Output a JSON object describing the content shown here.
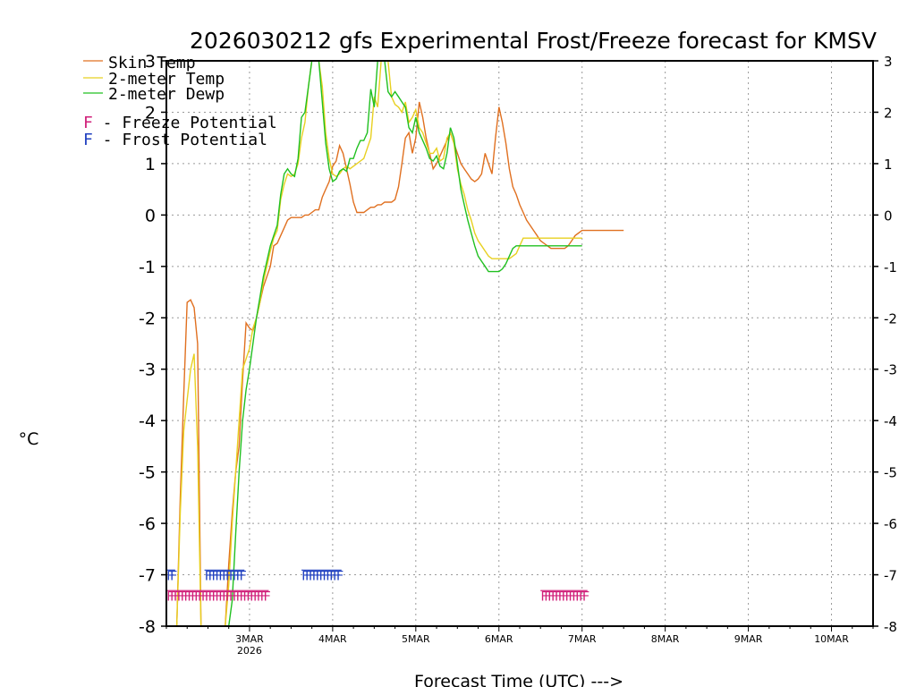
{
  "chart_data": {
    "type": "line",
    "title": "2026030212 gfs Experimental Frost/Freeze forecast for KMSV",
    "xlabel": "Forecast Time (UTC) --->",
    "ylabel": "°C",
    "ylim": [
      -8,
      3
    ],
    "xlim_hours": [
      -12,
      192
    ],
    "y_ticks": [
      "-8",
      "-7",
      "-6",
      "-5",
      "-4",
      "-3",
      "-2",
      "-1",
      "0",
      "1",
      "2",
      "3"
    ],
    "x_ticks": [
      {
        "label": "3MAR",
        "sub": "2026",
        "hour": 12
      },
      {
        "label": "4MAR",
        "sub": "",
        "hour": 36
      },
      {
        "label": "5MAR",
        "sub": "",
        "hour": 60
      },
      {
        "label": "6MAR",
        "sub": "",
        "hour": 84
      },
      {
        "label": "7MAR",
        "sub": "",
        "hour": 108
      },
      {
        "label": "8MAR",
        "sub": "",
        "hour": 132
      },
      {
        "label": "9MAR",
        "sub": "",
        "hour": 156
      },
      {
        "label": "10MAR",
        "sub": "",
        "hour": 180
      }
    ],
    "grid": true,
    "legend_location": "top-left",
    "series": [
      {
        "name": "Skin Temp",
        "color": "#e07020",
        "x": [
          -12,
          -9,
          -8,
          -7,
          -6,
          -5,
          -4,
          -3,
          -2,
          0,
          0.5,
          1,
          3,
          5,
          6,
          7,
          8,
          9,
          10,
          11,
          12,
          13,
          14,
          15,
          16,
          17,
          18,
          19,
          20,
          21,
          22,
          23,
          24,
          25,
          26,
          27,
          28,
          29,
          30,
          31,
          32,
          33,
          34,
          35,
          36,
          37,
          38,
          39,
          40,
          41,
          42,
          43,
          44,
          45,
          46,
          47,
          48,
          49,
          50,
          51,
          52,
          53,
          54,
          55,
          56,
          57,
          58,
          59,
          60,
          61,
          62,
          63,
          64,
          65,
          66,
          67,
          68,
          69,
          70,
          71,
          72,
          73,
          74,
          75,
          76,
          77,
          78,
          79,
          80,
          81,
          82,
          83,
          84,
          85,
          86,
          87,
          88,
          89,
          90,
          91,
          92,
          93,
          94,
          95,
          96,
          97,
          98,
          99,
          100,
          101,
          102,
          103,
          104,
          105,
          106,
          107,
          108,
          109,
          110,
          111,
          112,
          113,
          114,
          115,
          116,
          117,
          118,
          119,
          120
        ],
        "values": [
          -8,
          -8,
          -5.5,
          -3.5,
          -1.7,
          -1.65,
          -1.8,
          -2.5,
          -8,
          -8,
          -8,
          -8,
          -8,
          -8,
          -6.8,
          -5.8,
          -5.0,
          -4.5,
          -3.2,
          -2.1,
          -2.2,
          -2.25,
          -2.0,
          -1.7,
          -1.4,
          -1.2,
          -1.0,
          -0.6,
          -0.55,
          -0.4,
          -0.25,
          -0.1,
          -0.05,
          -0.05,
          -0.05,
          -0.05,
          0.0,
          0.0,
          0.05,
          0.1,
          0.1,
          0.35,
          0.5,
          0.65,
          0.95,
          1.05,
          1.35,
          1.2,
          0.9,
          0.6,
          0.25,
          0.05,
          0.05,
          0.05,
          0.1,
          0.15,
          0.15,
          0.2,
          0.2,
          0.25,
          0.25,
          0.25,
          0.3,
          0.55,
          1.0,
          1.5,
          1.6,
          1.2,
          1.5,
          2.2,
          1.9,
          1.5,
          1.2,
          0.9,
          1.0,
          1.15,
          1.3,
          1.45,
          1.6,
          1.4,
          1.2,
          1.0,
          0.9,
          0.8,
          0.7,
          0.65,
          0.7,
          0.8,
          1.2,
          1.0,
          0.8,
          1.5,
          2.1,
          1.8,
          1.4,
          0.9,
          0.55,
          0.4,
          0.2,
          0.05,
          -0.1,
          -0.2,
          -0.3,
          -0.4,
          -0.5,
          -0.55,
          -0.6,
          -0.65,
          -0.65,
          -0.65,
          -0.65,
          -0.65,
          -0.6,
          -0.5,
          -0.4,
          -0.35,
          -0.3,
          -0.3,
          -0.3,
          -0.3,
          -0.3,
          -0.3,
          -0.3,
          -0.3,
          -0.3,
          -0.3,
          -0.3,
          -0.3,
          -0.3
        ]
      },
      {
        "name": "2-meter Temp",
        "color": "#e8d020",
        "x": [
          -12,
          -9,
          -8,
          -7,
          -6,
          -5,
          -4,
          -3,
          -2,
          0,
          3,
          5,
          6,
          7,
          8,
          9,
          10,
          11,
          12,
          13,
          14,
          15,
          16,
          17,
          18,
          19,
          20,
          21,
          22,
          23,
          24,
          25,
          26,
          27,
          28,
          29,
          30,
          31,
          32,
          33,
          34,
          35,
          36,
          37,
          38,
          39,
          40,
          41,
          42,
          43,
          44,
          45,
          46,
          47,
          48,
          49,
          50,
          51,
          52,
          53,
          54,
          55,
          56,
          57,
          58,
          59,
          60,
          61,
          62,
          63,
          64,
          65,
          66,
          67,
          68,
          69,
          70,
          71,
          72,
          73,
          74,
          75,
          76,
          77,
          78,
          79,
          80,
          81,
          82,
          83,
          84,
          85,
          86,
          87,
          88,
          89,
          90,
          91,
          92,
          93,
          94,
          95,
          96,
          97,
          98,
          99,
          100,
          101,
          102,
          103,
          104,
          105,
          106,
          107,
          108
        ],
        "values": [
          -8,
          -8,
          -5.8,
          -4.2,
          -3.6,
          -3.0,
          -2.7,
          -4.5,
          -8,
          -8,
          -8,
          -8,
          -7.2,
          -6.0,
          -5.0,
          -4.0,
          -3.0,
          -2.8,
          -2.6,
          -2.2,
          -2.0,
          -1.7,
          -1.3,
          -1.0,
          -0.7,
          -0.45,
          -0.3,
          0.3,
          0.6,
          0.8,
          0.75,
          0.8,
          1.0,
          1.5,
          1.8,
          2.5,
          3.0,
          3.4,
          3.3,
          2.5,
          1.6,
          1.1,
          0.8,
          0.75,
          0.8,
          0.9,
          0.95,
          0.9,
          0.95,
          1.0,
          1.05,
          1.1,
          1.3,
          1.5,
          2.3,
          2.1,
          3.0,
          3.2,
          3.0,
          2.3,
          2.15,
          2.1,
          2.0,
          2.2,
          1.8,
          1.9,
          2.05,
          1.7,
          1.6,
          1.4,
          1.2,
          1.2,
          1.3,
          1.05,
          1.1,
          1.5,
          1.6,
          1.4,
          0.9,
          0.6,
          0.4,
          0.1,
          -0.1,
          -0.35,
          -0.5,
          -0.6,
          -0.7,
          -0.8,
          -0.85,
          -0.85,
          -0.85,
          -0.85,
          -0.85,
          -0.85,
          -0.8,
          -0.75,
          -0.6,
          -0.45,
          -0.45,
          -0.45,
          -0.45,
          -0.45,
          -0.45,
          -0.45,
          -0.45,
          -0.45,
          -0.45,
          -0.45,
          -0.45,
          -0.45,
          -0.45,
          -0.45,
          -0.45,
          -0.45,
          -0.45
        ]
      },
      {
        "name": "2-meter Dewp",
        "color": "#20c020",
        "x": [
          -12,
          -9,
          -8,
          -7,
          -6,
          -5,
          -4,
          -3,
          -2,
          0,
          3,
          5,
          6,
          7,
          8,
          9,
          10,
          11,
          12,
          13,
          14,
          15,
          16,
          17,
          18,
          19,
          20,
          21,
          22,
          23,
          24,
          25,
          26,
          27,
          28,
          29,
          30,
          31,
          32,
          33,
          34,
          35,
          36,
          37,
          38,
          39,
          40,
          41,
          42,
          43,
          44,
          45,
          46,
          47,
          48,
          49,
          50,
          51,
          52,
          53,
          54,
          55,
          56,
          57,
          58,
          59,
          60,
          61,
          62,
          63,
          64,
          65,
          66,
          67,
          68,
          69,
          70,
          71,
          72,
          73,
          74,
          75,
          76,
          77,
          78,
          79,
          80,
          81,
          82,
          83,
          84,
          85,
          86,
          87,
          88,
          89,
          90,
          91,
          92,
          93,
          94,
          95,
          96,
          97,
          98,
          99,
          100,
          101,
          102,
          103,
          104,
          105,
          106,
          107,
          108
        ],
        "values": [
          -8,
          -8,
          -8,
          -8,
          -8,
          -8,
          -8,
          -8,
          -8,
          -8,
          -8,
          -8,
          -8,
          -7.5,
          -6.2,
          -5.0,
          -4.0,
          -3.4,
          -3.0,
          -2.5,
          -2.0,
          -1.6,
          -1.2,
          -0.9,
          -0.6,
          -0.4,
          -0.2,
          0.4,
          0.8,
          0.9,
          0.8,
          0.75,
          1.1,
          1.9,
          2.0,
          2.5,
          3.4,
          3.5,
          3.2,
          2.2,
          1.4,
          0.9,
          0.65,
          0.7,
          0.85,
          0.9,
          0.85,
          1.1,
          1.1,
          1.3,
          1.45,
          1.45,
          1.6,
          2.45,
          2.1,
          3.2,
          3.4,
          3.3,
          2.4,
          2.3,
          2.4,
          2.3,
          2.2,
          2.1,
          1.7,
          1.6,
          1.9,
          1.6,
          1.45,
          1.3,
          1.1,
          1.05,
          1.15,
          0.95,
          0.9,
          1.2,
          1.7,
          1.5,
          1.0,
          0.5,
          0.2,
          -0.1,
          -0.35,
          -0.6,
          -0.8,
          -0.9,
          -1.0,
          -1.1,
          -1.1,
          -1.1,
          -1.1,
          -1.05,
          -0.95,
          -0.8,
          -0.65,
          -0.6,
          -0.6,
          -0.6,
          -0.6,
          -0.6,
          -0.6,
          -0.6,
          -0.6,
          -0.6,
          -0.6,
          -0.6,
          -0.6,
          -0.6,
          -0.6,
          -0.6,
          -0.6,
          -0.6,
          -0.6,
          -0.6,
          -0.6
        ]
      }
    ],
    "frost_freeze": {
      "freeze": {
        "label": "F - Freeze Potential",
        "letter": "F",
        "color": "#d0207a",
        "level": -7.5,
        "ranges": [
          [
            -12,
            16
          ],
          [
            96,
            108
          ]
        ]
      },
      "frost": {
        "label": "F - Frost Potential",
        "letter": "F",
        "color": "#2040c0",
        "level": -7.1,
        "ranges": [
          [
            -12,
            -11
          ],
          [
            -1,
            9
          ],
          [
            27,
            37
          ]
        ]
      }
    }
  }
}
